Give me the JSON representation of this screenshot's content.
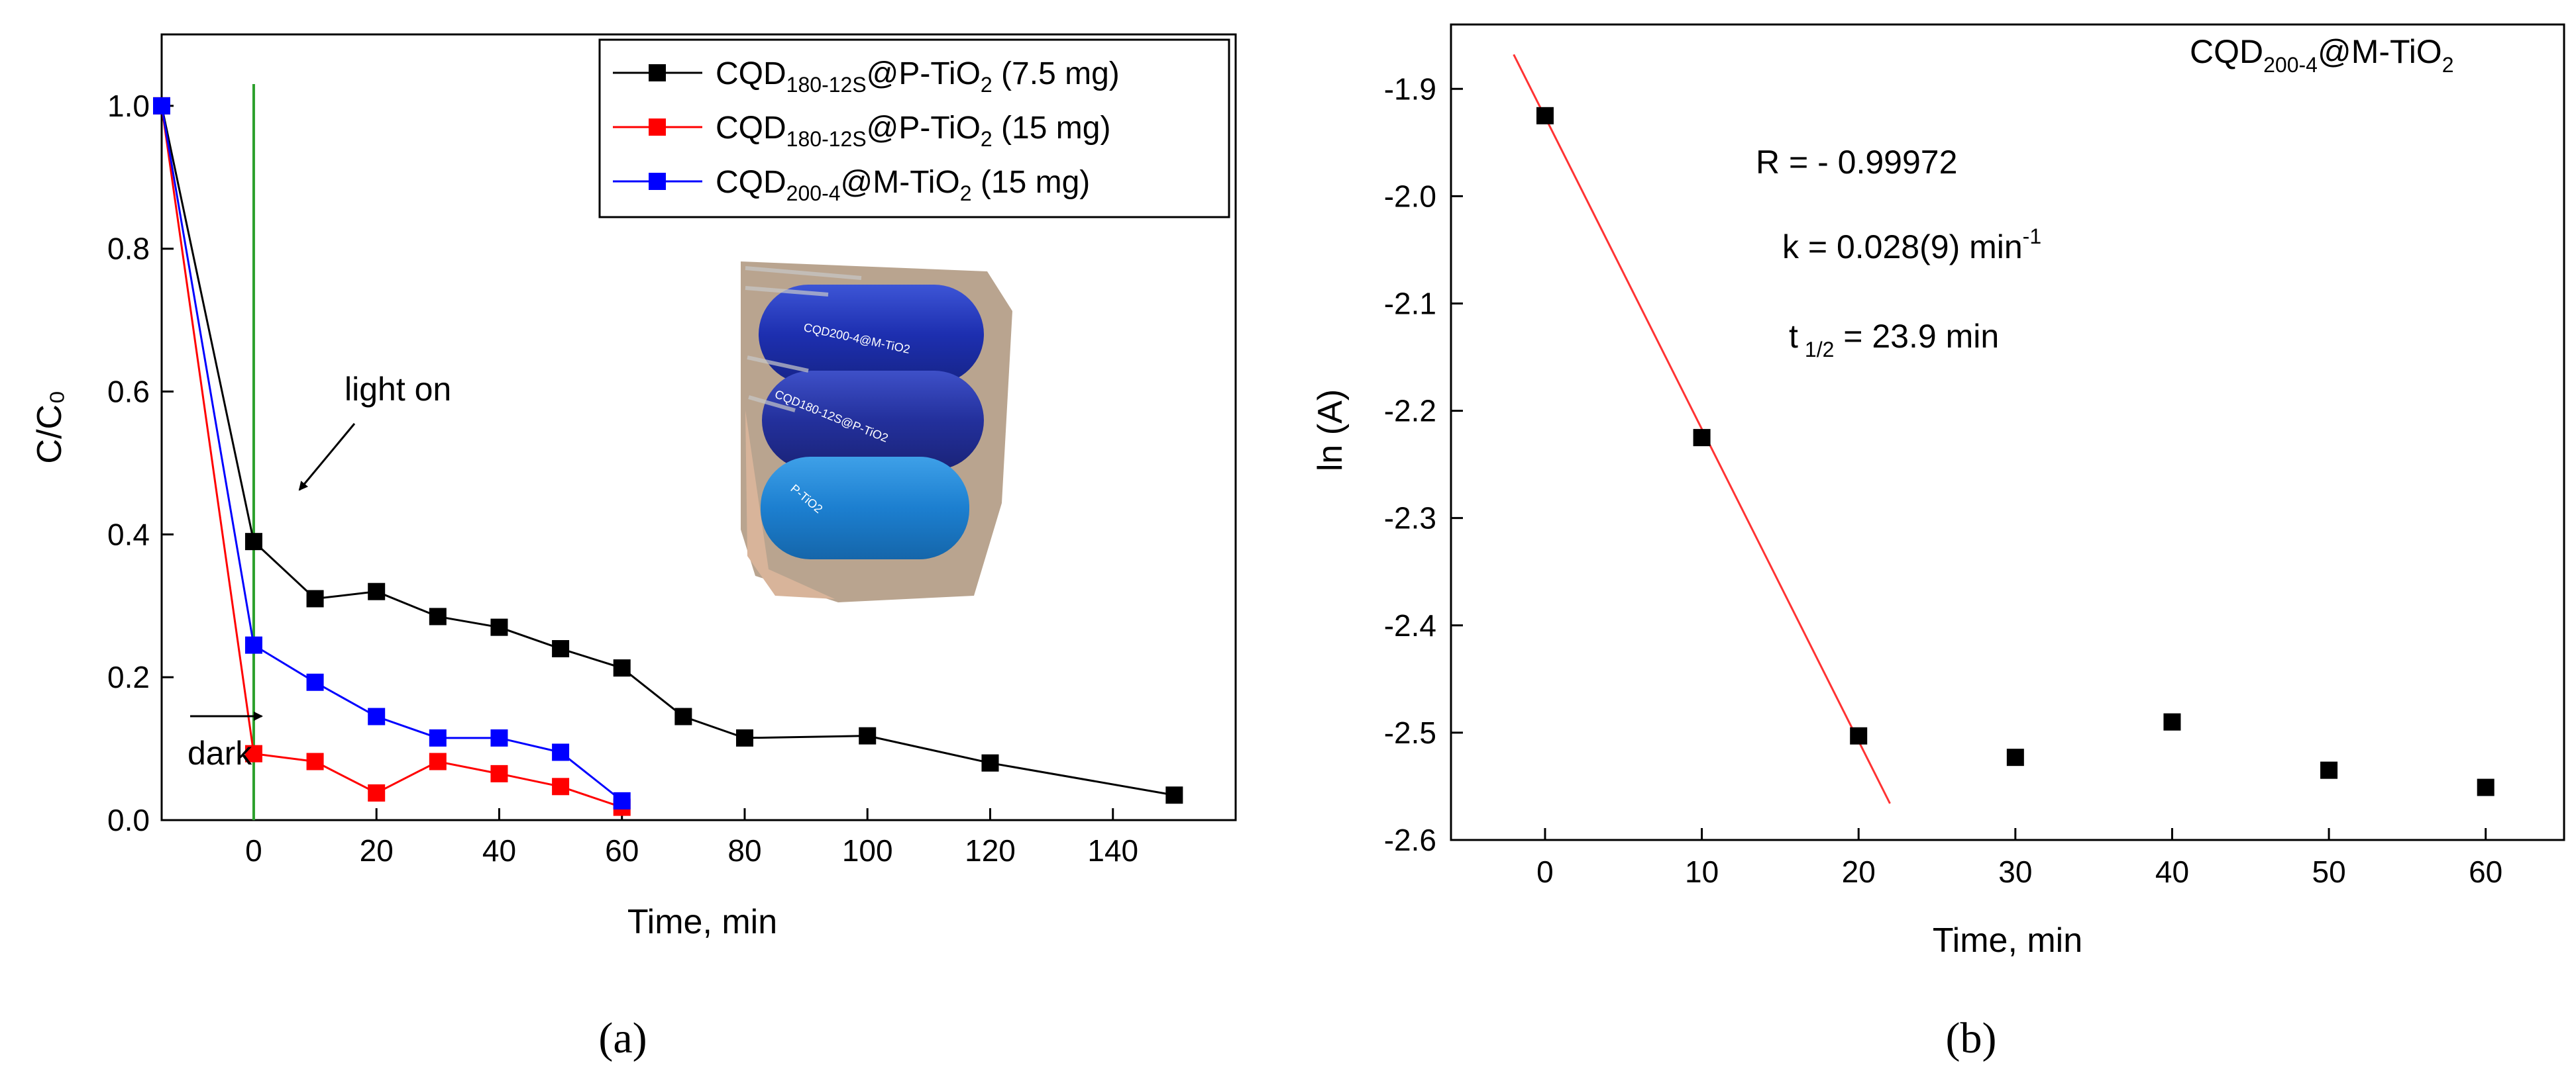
{
  "colors": {
    "series_black": "#000000",
    "series_red": "#ff0000",
    "series_blue": "#0000ff",
    "light_on_line": "#2ca02c",
    "fit_line": "#ff3333"
  },
  "chart_data": [
    {
      "type": "line",
      "panel_label": "(a)",
      "xlabel": "Time, min",
      "ylabel": "C/C₀",
      "xlim": [
        -15,
        160
      ],
      "ylim": [
        0,
        1.1
      ],
      "xticks": [
        0,
        20,
        40,
        60,
        80,
        100,
        120,
        140
      ],
      "yticks": [
        0.0,
        0.2,
        0.4,
        0.6,
        0.8,
        1.0
      ],
      "ytick_labels": [
        "0.0",
        "0.2",
        "0.4",
        "0.6",
        "0.8",
        "1.0"
      ],
      "grid": false,
      "legend_position": "top-right",
      "series": [
        {
          "name": "CQD180-12S@P-TiO2 (7.5 mg)",
          "color": "#000000",
          "legend": {
            "base": "CQD",
            "sub1": "180-12S",
            "mid": "@P-TiO",
            "sub2": "2",
            "tail": " (7.5 mg)"
          },
          "points": [
            [
              -15,
              1.0
            ],
            [
              0,
              0.39
            ],
            [
              10,
              0.31
            ],
            [
              20,
              0.32
            ],
            [
              30,
              0.285
            ],
            [
              40,
              0.27
            ],
            [
              50,
              0.24
            ],
            [
              60,
              0.213
            ],
            [
              70,
              0.145
            ],
            [
              80,
              0.115
            ],
            [
              100,
              0.118
            ],
            [
              120,
              0.08
            ],
            [
              150,
              0.035
            ]
          ]
        },
        {
          "name": "CQD180-12S@P-TiO2 (15 mg)",
          "color": "#ff0000",
          "legend": {
            "base": "CQD",
            "sub1": "180-12S",
            "mid": "@P-TiO",
            "sub2": "2",
            "tail": " (15 mg)"
          },
          "points": [
            [
              -15,
              1.0
            ],
            [
              0,
              0.093
            ],
            [
              10,
              0.082
            ],
            [
              20,
              0.038
            ],
            [
              30,
              0.082
            ],
            [
              40,
              0.065
            ],
            [
              50,
              0.047
            ],
            [
              60,
              0.018
            ]
          ]
        },
        {
          "name": "CQD200-4@M-TiO2 (15 mg)",
          "color": "#0000ff",
          "legend": {
            "base": "CQD",
            "sub1": "200-4",
            "mid": "@M-TiO",
            "sub2": "2",
            "tail": " (15 mg)"
          },
          "points": [
            [
              -15,
              1.0
            ],
            [
              0,
              0.245
            ],
            [
              10,
              0.193
            ],
            [
              20,
              0.145
            ],
            [
              30,
              0.115
            ],
            [
              40,
              0.115
            ],
            [
              50,
              0.095
            ],
            [
              60,
              0.027
            ]
          ]
        }
      ],
      "annotations": {
        "light_on": "light on",
        "dark": "dark"
      },
      "inset_photo_labels": [
        "CQD200-4@M-TiO2",
        "CQD180-12S@P-TiO2",
        "P-TiO2"
      ]
    },
    {
      "type": "scatter",
      "panel_label": "(b)",
      "title": {
        "base": "CQD",
        "sub1": "200-4",
        "mid": "@M-TiO",
        "sub2": "2"
      },
      "xlabel": "Time, min",
      "ylabel": "ln (A)",
      "xlim": [
        -6,
        65
      ],
      "ylim": [
        -2.6,
        -1.84
      ],
      "xticks": [
        0,
        10,
        20,
        30,
        40,
        50,
        60
      ],
      "yticks": [
        -2.6,
        -2.5,
        -2.4,
        -2.3,
        -2.2,
        -2.1,
        -2.0,
        -1.9
      ],
      "ytick_labels": [
        "-2.6",
        "-2.5",
        "-2.4",
        "-2.3",
        "-2.2",
        "-2.1",
        "-2.0",
        "-1.9"
      ],
      "grid": false,
      "points": [
        [
          0,
          -1.925
        ],
        [
          10,
          -2.225
        ],
        [
          20,
          -2.503
        ],
        [
          30,
          -2.523
        ],
        [
          40,
          -2.49
        ],
        [
          50,
          -2.535
        ],
        [
          60,
          -2.551
        ]
      ],
      "fit_line": {
        "x": [
          -2,
          22
        ],
        "y": [
          -1.868,
          -2.566
        ]
      },
      "annotations": {
        "r": "R = - 0.99972",
        "k_text": "k = 0.028(9) min",
        "k_sup": "-1",
        "t_prefix": "t",
        "t_sub": "1/2",
        "t_value": " = 23.9 min"
      }
    }
  ]
}
